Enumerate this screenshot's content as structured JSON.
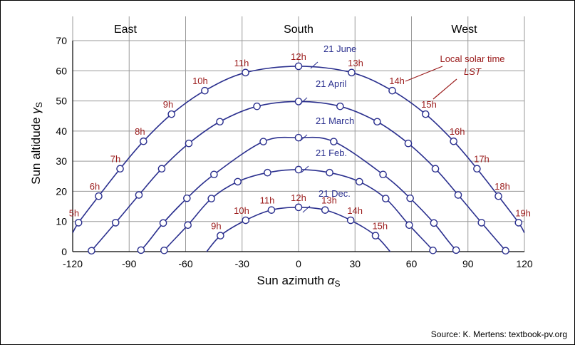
{
  "chart_data": {
    "type": "line",
    "xlabel": "Sun azimuth",
    "xlabel_symbol": "α",
    "xlabel_subscript": "S",
    "ylabel": "Sun altidude",
    "ylabel_symbol": "γ",
    "ylabel_subscript": "S",
    "xlim": [
      -120,
      120
    ],
    "ylim": [
      0,
      70
    ],
    "xticks": [
      -120,
      -90,
      -60,
      -30,
      0,
      30,
      60,
      90,
      120
    ],
    "yticks": [
      0,
      10,
      20,
      30,
      40,
      50,
      60,
      70
    ],
    "grid": true,
    "directions": [
      {
        "label": "East",
        "x": -92
      },
      {
        "label": "South",
        "x": 0
      },
      {
        "label": "West",
        "x": 88
      }
    ],
    "series": [
      {
        "name": "21 June",
        "x": [
          -120,
          -116.9,
          -106.2,
          -94.8,
          -82.4,
          -67.5,
          -49.8,
          -28.2,
          0,
          28.2,
          49.8,
          67.5,
          82.4,
          94.8,
          106.2,
          116.9,
          120
        ],
        "y": [
          6.2,
          9.6,
          18.4,
          27.5,
          36.6,
          45.6,
          53.4,
          59.4,
          61.5,
          59.4,
          53.4,
          45.6,
          36.6,
          27.5,
          18.4,
          9.6,
          6.2
        ]
      },
      {
        "name": "21 April",
        "x": [
          -110,
          -97.2,
          -84.8,
          -72.7,
          -58.3,
          -41.8,
          -22.1,
          0,
          22.1,
          41.8,
          58.3,
          72.7,
          84.8,
          97.2,
          110
        ],
        "y": [
          0.3,
          9.6,
          18.8,
          27.5,
          35.9,
          43.1,
          48.2,
          49.8,
          48.2,
          43.1,
          35.9,
          27.5,
          18.8,
          9.6,
          0.3
        ]
      },
      {
        "name": "21 March",
        "x": [
          -93,
          -83.7,
          -71.9,
          -59.3,
          -44.9,
          -18.7,
          0,
          18.7,
          44.9,
          59.3,
          71.9,
          83.7,
          93
        ],
        "y": [
          -3,
          0.5,
          9.5,
          17.7,
          25.6,
          36.5,
          37.8,
          36.5,
          25.6,
          17.7,
          9.5,
          0.5,
          -3
        ]
      },
      {
        "name": "21 Feb.",
        "x": [
          -72,
          -71.4,
          -58.8,
          -46.3,
          -32.3,
          -16.5,
          0,
          16.5,
          32.3,
          46.3,
          58.8,
          71.4,
          72
        ],
        "y": [
          -1,
          0.4,
          8.8,
          17.6,
          23.2,
          26.2,
          27.2,
          26.2,
          23.2,
          17.6,
          8.8,
          0.4,
          -1
        ]
      },
      {
        "name": "21 Dec.",
        "x": [
          -50,
          -41.5,
          -28.1,
          -14.4,
          0,
          14.1,
          27.7,
          40.9,
          50
        ],
        "y": [
          -1,
          5.3,
          10.4,
          13.8,
          14.7,
          13.8,
          10.4,
          5.3,
          -1
        ]
      }
    ],
    "hour_labels": [
      {
        "label": "5h",
        "x": -117,
        "y": 9.6
      },
      {
        "label": "6h",
        "x": -106,
        "y": 18.4
      },
      {
        "label": "7h",
        "x": -95,
        "y": 27.5
      },
      {
        "label": "8h",
        "x": -82,
        "y": 36.6
      },
      {
        "label": "9h",
        "x": -67,
        "y": 45.6
      },
      {
        "label": "10h",
        "x": -50,
        "y": 53.4
      },
      {
        "label": "11h",
        "x": -28,
        "y": 59.4
      },
      {
        "label": "12h",
        "x": 0,
        "y": 61.5
      },
      {
        "label": "13h",
        "x": 28,
        "y": 59.4
      },
      {
        "label": "14h",
        "x": 50,
        "y": 53.4
      },
      {
        "label": "15h",
        "x": 67,
        "y": 45.6
      },
      {
        "label": "16h",
        "x": 82,
        "y": 36.6
      },
      {
        "label": "17h",
        "x": 95,
        "y": 27.5
      },
      {
        "label": "18h",
        "x": 106,
        "y": 18.4
      },
      {
        "label": "19h",
        "x": 117,
        "y": 9.6
      },
      {
        "label": "9h",
        "x": -41.5,
        "y": 5.3
      },
      {
        "label": "10h",
        "x": -28,
        "y": 10.4
      },
      {
        "label": "11h",
        "x": -14.4,
        "y": 13.8
      },
      {
        "label": "12h",
        "x": 0,
        "y": 14.7
      },
      {
        "label": "13h",
        "x": 14,
        "y": 13.8
      },
      {
        "label": "14h",
        "x": 27.7,
        "y": 10.4
      },
      {
        "label": "15h",
        "x": 41,
        "y": 5.3
      }
    ],
    "annotation": {
      "line1": "Local solar time",
      "line2": "LST"
    },
    "source": "Source: K. Mertens: textbook-pv.org"
  }
}
